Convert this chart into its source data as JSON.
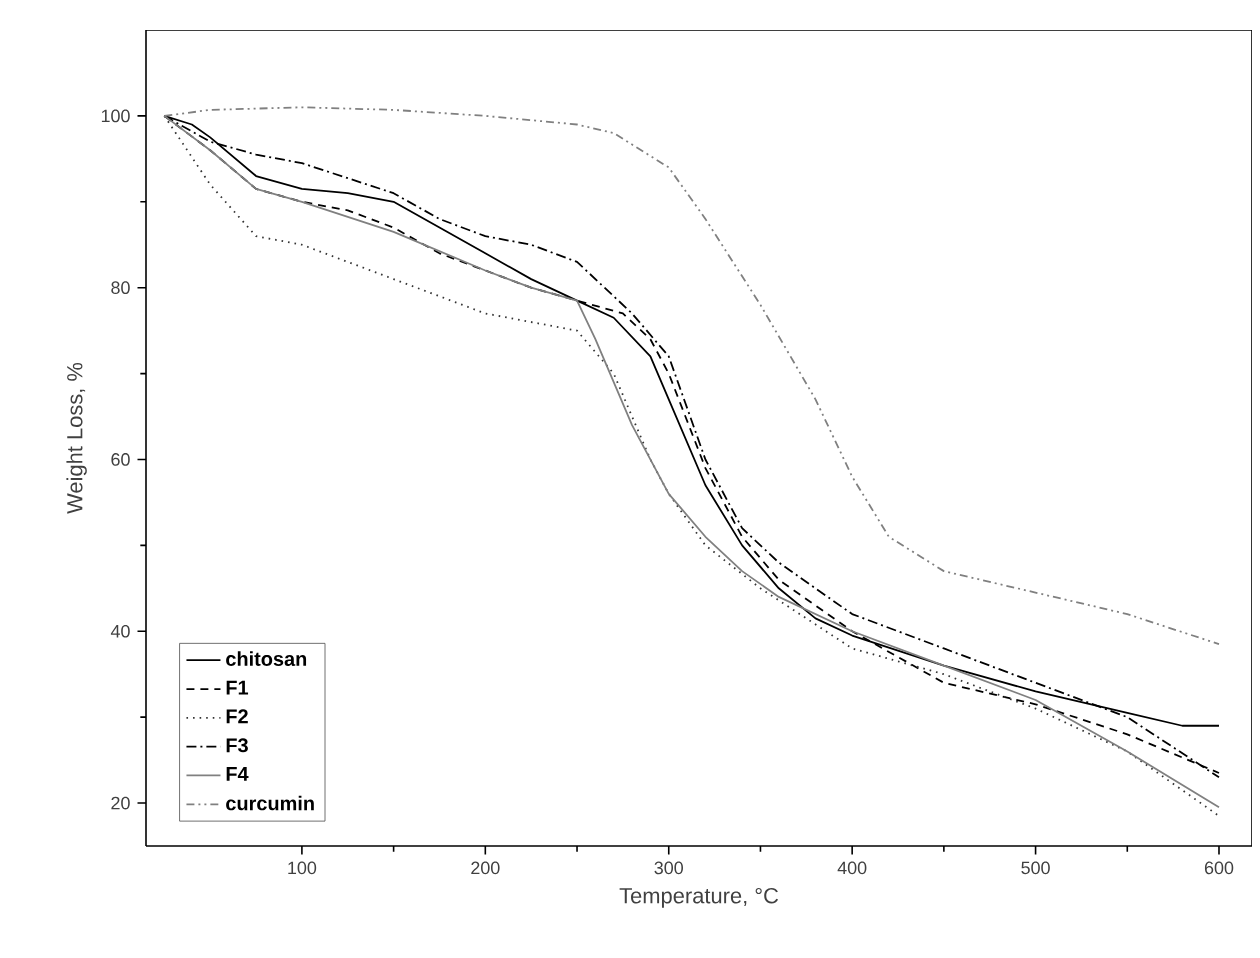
{
  "chart_data": {
    "type": "line",
    "xlabel": "Temperature, °C",
    "ylabel": "Weight Loss, %",
    "xlim": [
      15,
      618
    ],
    "ylim": [
      15,
      110
    ],
    "xticks": [
      100,
      200,
      300,
      400,
      500,
      600
    ],
    "yticks": [
      20,
      40,
      60,
      80,
      100
    ],
    "legend": "bottom left",
    "grid": false,
    "marker": "none",
    "series": [
      {
        "name": "chitosan",
        "color": "#000000",
        "line_style": "solid",
        "x": [
          25,
          40,
          50,
          75,
          100,
          125,
          150,
          175,
          200,
          225,
          250,
          270,
          290,
          300,
          320,
          340,
          360,
          380,
          400,
          450,
          500,
          550,
          580,
          600
        ],
        "values": [
          100,
          99,
          97.5,
          93,
          91.5,
          91,
          90,
          87,
          84,
          81,
          78.5,
          76.5,
          72,
          67,
          57,
          50,
          45,
          41.5,
          39.5,
          36,
          33,
          30.5,
          29,
          29
        ]
      },
      {
        "name": "F1",
        "color": "#000000",
        "line_style": "dashed",
        "x": [
          25,
          50,
          75,
          100,
          125,
          150,
          175,
          200,
          225,
          250,
          275,
          290,
          300,
          320,
          340,
          360,
          400,
          450,
          500,
          550,
          600
        ],
        "values": [
          100,
          96,
          91.5,
          90,
          89,
          87,
          84,
          82,
          80,
          78.5,
          77,
          74,
          70,
          59,
          51,
          46,
          40,
          34,
          31.5,
          28,
          23.5
        ]
      },
      {
        "name": "F2",
        "color": "#333333",
        "line_style": "dotted",
        "x": [
          25,
          50,
          75,
          100,
          150,
          200,
          250,
          270,
          290,
          300,
          320,
          350,
          400,
          450,
          500,
          550,
          600
        ],
        "values": [
          100,
          92,
          86,
          85,
          81,
          77,
          75,
          70,
          60,
          56,
          50,
          45,
          38,
          35,
          31,
          26,
          18.5
        ]
      },
      {
        "name": "F3",
        "color": "#000000",
        "line_style": "dashdot",
        "x": [
          25,
          50,
          75,
          100,
          150,
          175,
          200,
          225,
          250,
          265,
          280,
          300,
          320,
          340,
          360,
          400,
          450,
          500,
          550,
          600
        ],
        "values": [
          100,
          97,
          95.5,
          94.5,
          91,
          88,
          86,
          85,
          83,
          80,
          77,
          72,
          60,
          52,
          48,
          42,
          38,
          34,
          30,
          23
        ]
      },
      {
        "name": "F4",
        "color": "#808080",
        "line_style": "solid",
        "x": [
          25,
          50,
          75,
          100,
          150,
          200,
          225,
          250,
          260,
          280,
          300,
          320,
          340,
          360,
          400,
          450,
          500,
          550,
          600
        ],
        "values": [
          100,
          96,
          91.5,
          90,
          86.5,
          82,
          80,
          78.5,
          74,
          64,
          56,
          51,
          47,
          44,
          40,
          36,
          32,
          26,
          19.5
        ]
      },
      {
        "name": "curcumin",
        "color": "#808080",
        "line_style": "dashdotdot",
        "x": [
          25,
          50,
          100,
          150,
          200,
          250,
          270,
          300,
          320,
          350,
          380,
          400,
          420,
          450,
          500,
          550,
          600
        ],
        "values": [
          100,
          100.7,
          101,
          100.7,
          100,
          99,
          98,
          94,
          88,
          78,
          67,
          58,
          51,
          47,
          44.5,
          42,
          38.5
        ]
      }
    ]
  }
}
